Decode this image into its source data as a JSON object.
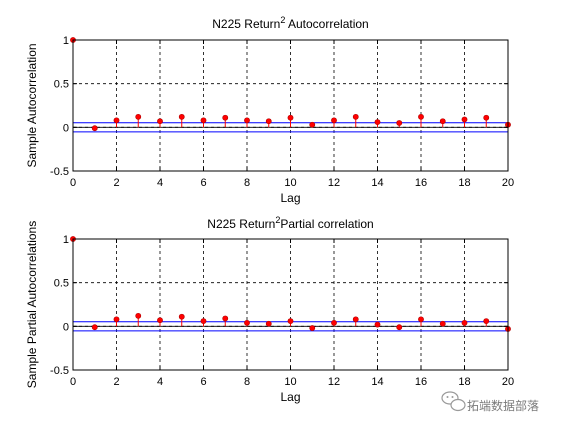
{
  "chart_data": [
    {
      "type": "stem",
      "title": "N225 Return",
      "title_superscript": "2",
      "title_suffix": " Autocorrelation",
      "xlabel": "Lag",
      "ylabel": "Sample Autocorrelation",
      "xlim": [
        0,
        20
      ],
      "ylim": [
        -0.5,
        1
      ],
      "xticks": [
        "0",
        "2",
        "4",
        "6",
        "8",
        "10",
        "12",
        "14",
        "16",
        "18",
        "20"
      ],
      "yticks": [
        "-0.5",
        "0",
        "0.5",
        "1"
      ],
      "grid": true,
      "confidence_bounds": [
        0.052,
        -0.052
      ],
      "x": [
        0,
        1,
        2,
        3,
        4,
        5,
        6,
        7,
        8,
        9,
        10,
        11,
        12,
        13,
        14,
        15,
        16,
        17,
        18,
        19,
        20
      ],
      "values": [
        1,
        -0.01,
        0.08,
        0.12,
        0.07,
        0.12,
        0.08,
        0.11,
        0.08,
        0.07,
        0.11,
        0.03,
        0.08,
        0.12,
        0.06,
        0.05,
        0.12,
        0.07,
        0.09,
        0.11,
        0.03
      ]
    },
    {
      "type": "stem",
      "title": "N225 Return",
      "title_superscript": "2",
      "title_suffix": "Partial correlation",
      "xlabel": "Lag",
      "ylabel": "Sample Partial Autocorrelations",
      "xlim": [
        0,
        20
      ],
      "ylim": [
        -0.5,
        1
      ],
      "xticks": [
        "0",
        "2",
        "4",
        "6",
        "8",
        "10",
        "12",
        "14",
        "16",
        "18",
        "20"
      ],
      "yticks": [
        "-0.5",
        "0",
        "0.5",
        "1"
      ],
      "grid": true,
      "confidence_bounds": [
        0.052,
        -0.052
      ],
      "x": [
        0,
        1,
        2,
        3,
        4,
        5,
        6,
        7,
        8,
        9,
        10,
        11,
        12,
        13,
        14,
        15,
        16,
        17,
        18,
        19,
        20
      ],
      "values": [
        1,
        -0.01,
        0.08,
        0.12,
        0.07,
        0.11,
        0.06,
        0.09,
        0.04,
        0.03,
        0.06,
        -0.02,
        0.04,
        0.08,
        0.02,
        -0.01,
        0.08,
        0.03,
        0.04,
        0.06,
        -0.03
      ]
    }
  ],
  "watermark": "拓端数据部落",
  "colors": {
    "stem": "#ff0000",
    "marker": "#ff0000",
    "marker_edge": "#b00000",
    "bound": "#0000ff",
    "zero_line": "#000000",
    "grid": "#000000"
  }
}
